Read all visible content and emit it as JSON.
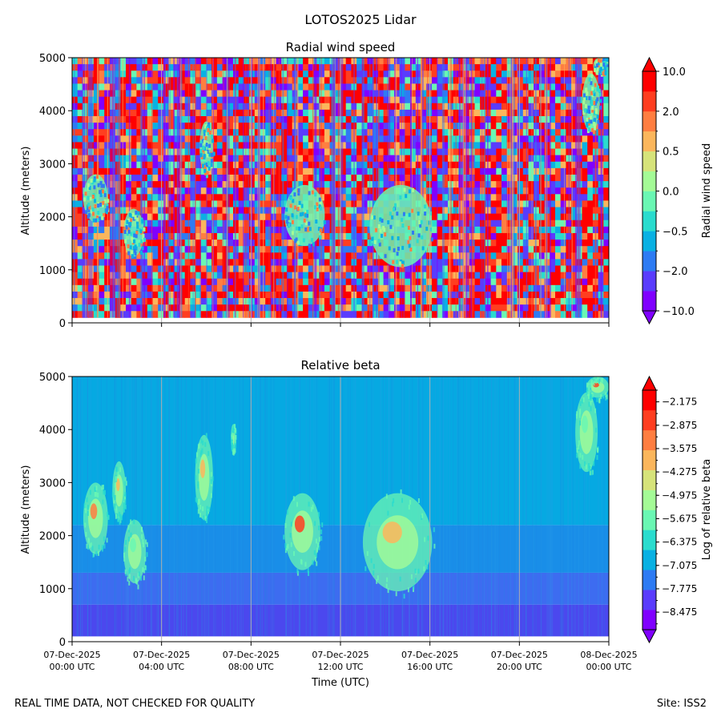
{
  "figure": {
    "title": "LOTOS2025 Lidar",
    "footer_left": "REAL TIME DATA, NOT CHECKED FOR QUALITY",
    "footer_right": "Site: ISS2"
  },
  "chart_data": [
    {
      "type": "heatmap",
      "title": "Radial wind speed",
      "ylabel": "Altitude (meters)",
      "ylim": [
        0,
        5000
      ],
      "yticks": [
        0,
        1000,
        2000,
        3000,
        4000,
        5000
      ],
      "xlim_hours": [
        0,
        24
      ],
      "xticks_hours": [
        0,
        4,
        8,
        12,
        16,
        20,
        24
      ],
      "x_ticklabels_visible": false,
      "colorbar": {
        "label": "Radial wind speed",
        "colors": [
          "#8000ff",
          "#5a3cfd",
          "#2e7bf3",
          "#09b1e3",
          "#2adcce",
          "#6af7b3",
          "#a4fb96",
          "#d6e37a",
          "#fbb65c",
          "#ff7e41",
          "#ff3e20",
          "#ff0000"
        ],
        "ticks": [
          "10.0",
          "2.0",
          "0.5",
          "0.0",
          "−0.5",
          "−2.0",
          "−10.0"
        ]
      },
      "features": [
        {
          "hour_start": 0.5,
          "hour_end": 1.6,
          "alt_low": 1900,
          "alt_high": 2800
        },
        {
          "hour_start": 2.3,
          "hour_end": 3.2,
          "alt_low": 1250,
          "alt_high": 2150
        },
        {
          "hour_start": 5.7,
          "hour_end": 6.3,
          "alt_low": 2800,
          "alt_high": 3800
        },
        {
          "hour_start": 9.5,
          "hour_end": 11.3,
          "alt_low": 1450,
          "alt_high": 2600
        },
        {
          "hour_start": 13.3,
          "hour_end": 16.1,
          "alt_low": 1050,
          "alt_high": 2600
        },
        {
          "hour_start": 22.8,
          "hour_end": 23.6,
          "alt_low": 3600,
          "alt_high": 4700
        },
        {
          "hour_start": 23.3,
          "hour_end": 23.9,
          "alt_low": 4700,
          "alt_high": 5000
        }
      ]
    },
    {
      "type": "heatmap",
      "title": "Relative beta",
      "ylabel": "Altitude (meters)",
      "xlabel": "Time (UTC)",
      "ylim": [
        0,
        5000
      ],
      "yticks": [
        0,
        1000,
        2000,
        3000,
        4000,
        5000
      ],
      "xlim_hours": [
        0,
        24
      ],
      "xticks_hours": [
        0,
        4,
        8,
        12,
        16,
        20,
        24
      ],
      "xticklabels": [
        [
          "07-Dec-2025",
          "00:00 UTC"
        ],
        [
          "07-Dec-2025",
          "04:00 UTC"
        ],
        [
          "07-Dec-2025",
          "08:00 UTC"
        ],
        [
          "07-Dec-2025",
          "12:00 UTC"
        ],
        [
          "07-Dec-2025",
          "16:00 UTC"
        ],
        [
          "07-Dec-2025",
          "20:00 UTC"
        ],
        [
          "08-Dec-2025",
          "00:00 UTC"
        ]
      ],
      "colorbar": {
        "label": "Log of relative beta",
        "range": [
          -9.0,
          -1.825
        ],
        "colors": [
          "#8000ff",
          "#5a3cfd",
          "#2e7bf3",
          "#09b1e3",
          "#2adcce",
          "#6af7b3",
          "#a4fb96",
          "#d6e37a",
          "#fbb65c",
          "#ff7e41",
          "#ff3e20",
          "#ff0000"
        ],
        "ticks": [
          -2.175,
          -2.875,
          -3.575,
          -4.275,
          -4.975,
          -5.675,
          -6.375,
          -7.075,
          -7.775,
          -8.475
        ],
        "ticklabels": [
          "−2.175",
          "−2.875",
          "−3.575",
          "−4.275",
          "−4.975",
          "−5.675",
          "−6.375",
          "−7.075",
          "−7.775",
          "−8.475"
        ]
      },
      "layers": [
        {
          "alt_low": 0,
          "alt_high": 700,
          "color": "#4b48ee"
        },
        {
          "alt_low": 700,
          "alt_high": 1300,
          "color": "#3d6cf0"
        },
        {
          "alt_low": 1300,
          "alt_high": 2200,
          "color": "#198ee8"
        },
        {
          "alt_low": 2200,
          "alt_high": 5000,
          "color": "#06a9e2"
        }
      ],
      "features": [
        {
          "hour_start": 0.5,
          "hour_end": 1.6,
          "alt_low": 1650,
          "alt_high": 3000,
          "peak_log_beta": -3.6
        },
        {
          "hour_start": 1.8,
          "hour_end": 2.4,
          "alt_low": 2300,
          "alt_high": 3400,
          "peak_log_beta": -4.2
        },
        {
          "hour_start": 2.3,
          "hour_end": 3.3,
          "alt_low": 1100,
          "alt_high": 2300,
          "peak_log_beta": -5.8
        },
        {
          "hour_start": 5.5,
          "hour_end": 6.3,
          "alt_low": 2300,
          "alt_high": 3900,
          "peak_log_beta": -3.8
        },
        {
          "hour_start": 7.1,
          "hour_end": 7.3,
          "alt_low": 3600,
          "alt_high": 4100,
          "peak_log_beta": -4.6
        },
        {
          "hour_start": 9.5,
          "hour_end": 11.1,
          "alt_low": 1350,
          "alt_high": 2800,
          "peak_log_beta": -3.0
        },
        {
          "hour_start": 13.0,
          "hour_end": 16.1,
          "alt_low": 950,
          "alt_high": 2800,
          "peak_log_beta": -4.0
        },
        {
          "hour_start": 22.5,
          "hour_end": 23.5,
          "alt_low": 3200,
          "alt_high": 4700,
          "peak_log_beta": -6.0
        },
        {
          "hour_start": 23.0,
          "hour_end": 24.0,
          "alt_low": 4600,
          "alt_high": 5000,
          "peak_log_beta": -3.0
        }
      ]
    }
  ]
}
